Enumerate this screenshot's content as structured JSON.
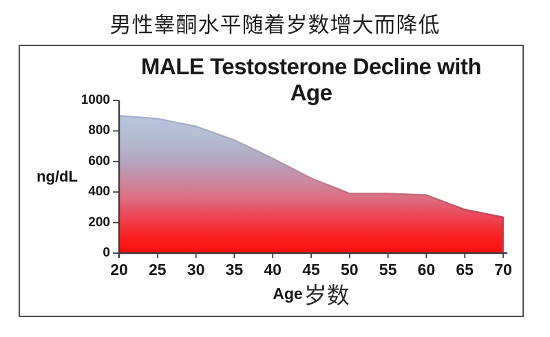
{
  "page_title": "男性睾酮水平随着岁数增大而降低",
  "chart": {
    "title": "MALE Testosterone Decline with Age",
    "y_axis_label": "ng/dL",
    "x_axis_label_en": "Age",
    "x_axis_label_zh": "岁数"
  },
  "chart_data": {
    "type": "area",
    "title": "MALE Testosterone Decline with Age",
    "x": [
      20,
      25,
      30,
      35,
      40,
      45,
      50,
      55,
      60,
      65,
      70
    ],
    "values": [
      900,
      880,
      830,
      740,
      620,
      490,
      390,
      390,
      380,
      285,
      235
    ],
    "xlabel": "Age岁数",
    "ylabel": "ng/dL",
    "xlim": [
      20,
      70
    ],
    "ylim": [
      0,
      1000
    ],
    "x_ticks": [
      20,
      25,
      30,
      35,
      40,
      45,
      50,
      55,
      60,
      65,
      70
    ],
    "y_ticks": [
      0,
      200,
      400,
      600,
      800,
      1000
    ],
    "grid": false,
    "legend": false,
    "colors": {
      "axis": "#3d3d3d",
      "fill_top": "#b7c5de",
      "fill_mid": "#cb8ba0",
      "fill_bottom": "#fb0e0e"
    },
    "fill_gradient_stops": [
      [
        "0%",
        "#b7c5de"
      ],
      [
        "17%",
        "#b4bcd3"
      ],
      [
        "33%",
        "#b3a5c1"
      ],
      [
        "47%",
        "#c98ba2"
      ],
      [
        "61%",
        "#dd6c7e"
      ],
      [
        "75%",
        "#ee4150"
      ],
      [
        "88%",
        "#f92120"
      ],
      [
        "100%",
        "#fb0e0e"
      ]
    ],
    "edge_gradient_stops": [
      [
        "0%",
        "#9fb0ca"
      ],
      [
        "40%",
        "#aa95b1"
      ],
      [
        "70%",
        "#c76d7f"
      ],
      [
        "100%",
        "#bf3a49"
      ]
    ]
  }
}
